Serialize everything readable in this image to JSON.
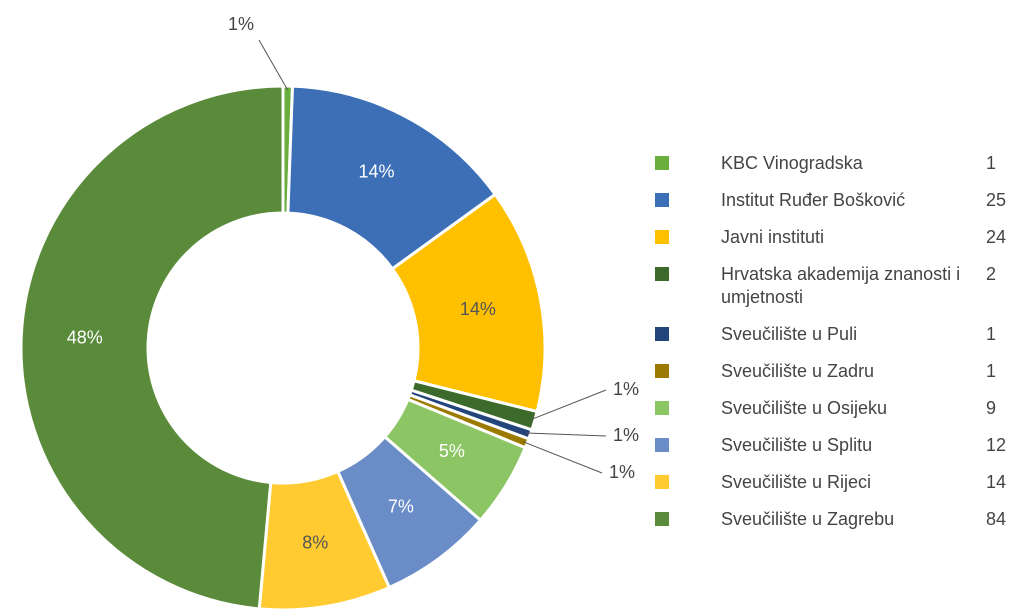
{
  "chart_data": {
    "type": "donut",
    "categories": [
      "KBC Vinogradska",
      "Institut Ruđer Bošković",
      "Javni instituti",
      "Hrvatska akademija znanosti i umjetnosti",
      "Sveučilište u Puli",
      "Sveučilište u Zadru",
      "Sveučilište u Osijeku",
      "Sveučilište u Splitu",
      "Sveučilište u Rijeci",
      "Sveučilište u Zagrebu"
    ],
    "values": [
      1,
      25,
      24,
      2,
      1,
      1,
      9,
      12,
      14,
      84
    ],
    "value_labels": [
      "1%",
      "14%",
      "14%",
      "1%",
      "1%",
      "1%",
      "5%",
      "7%",
      "8%",
      "48%"
    ],
    "colors": [
      "#6aae3e",
      "#3d6fb7",
      "#ffc000",
      "#3b6a2b",
      "#24457c",
      "#9c7a00",
      "#8cc664",
      "#6a8cc7",
      "#ffcb30",
      "#5a8b3a"
    ],
    "legend": "right"
  }
}
